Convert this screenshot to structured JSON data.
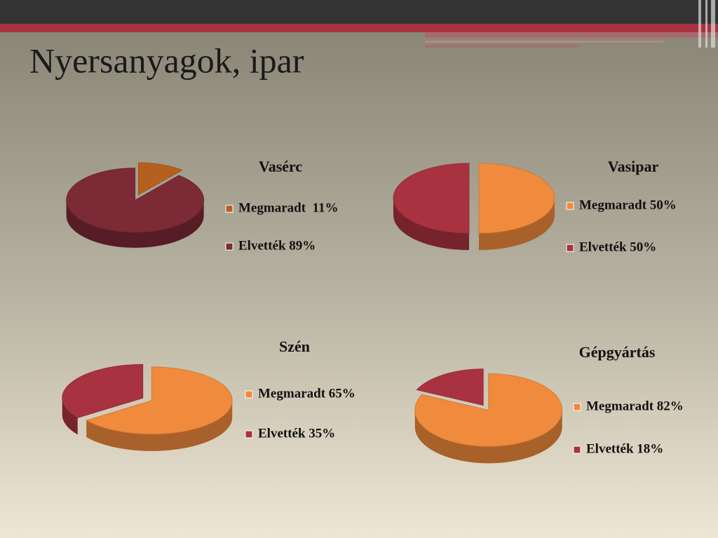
{
  "title": "Nyersanyagok, ipar",
  "chart_data": [
    {
      "type": "pie",
      "title": "Vasérc",
      "categories": [
        "Megmaradt  11%",
        "Elvették 89%"
      ],
      "values": [
        11,
        89
      ],
      "colors": [
        "#b5601f",
        "#7b2a36"
      ]
    },
    {
      "type": "pie",
      "title": "Vasipar",
      "categories": [
        "Megmaradt 50%",
        "Elvették 50%"
      ],
      "values": [
        50,
        50
      ],
      "colors": [
        "#f08a3c",
        "#a8323f"
      ]
    },
    {
      "type": "pie",
      "title": "Szén",
      "categories": [
        "Megmaradt 65%",
        "Elvették 35%"
      ],
      "values": [
        65,
        35
      ],
      "colors": [
        "#f08a3c",
        "#a8323f"
      ]
    },
    {
      "type": "pie",
      "title": "Gépgyártás",
      "categories": [
        "Megmaradt 82%",
        "Elvették 18%"
      ],
      "values": [
        82,
        18
      ],
      "colors": [
        "#f08a3c",
        "#a8323f"
      ]
    }
  ]
}
